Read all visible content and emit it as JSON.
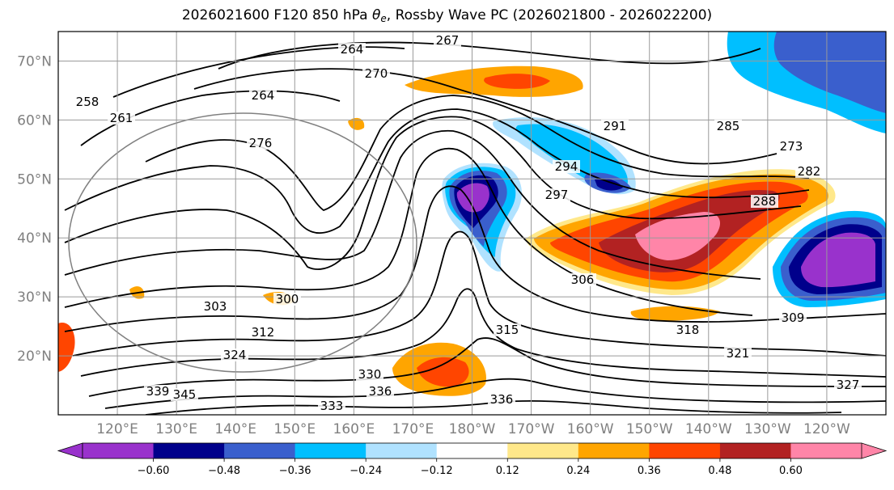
{
  "title": {
    "prefix": "2026021600 F120 850 hPa ",
    "var_symbol": "θ",
    "var_sub": "e",
    "suffix": ", Rossby Wave PC (2026021800 - 2026022200)"
  },
  "map": {
    "type": "heatmap",
    "projection": "cylindrical (lat-lon)",
    "lon_range": [
      110,
      250
    ],
    "lat_range": [
      10,
      75
    ],
    "lat_ticks": [
      "70°N",
      "60°N",
      "50°N",
      "40°N",
      "30°N",
      "20°N"
    ],
    "lon_ticks": [
      "120°E",
      "130°E",
      "140°E",
      "150°E",
      "160°E",
      "170°E",
      "180°W",
      "170°W",
      "160°W",
      "150°W",
      "140°W",
      "130°W",
      "120°W"
    ],
    "grid": true,
    "contour_labels": [
      "258",
      "261",
      "264",
      "264",
      "267",
      "270",
      "276",
      "282",
      "288",
      "294",
      "297",
      "300",
      "303",
      "306",
      "309",
      "312",
      "315",
      "318",
      "321",
      "324",
      "327",
      "330",
      "333",
      "336",
      "336",
      "339",
      "345",
      "273",
      "285",
      "291"
    ],
    "features": [
      {
        "label": "positive",
        "lon_range": [
          175,
          200
        ],
        "lat_range": [
          62,
          70
        ],
        "value_range": [
          0.24,
          0.48
        ]
      },
      {
        "label": "positive",
        "lon_range": [
          195,
          238
        ],
        "lat_range": [
          30,
          52
        ],
        "value_range": [
          0.24,
          0.7
        ]
      },
      {
        "label": "positive",
        "lon_range": [
          166,
          183
        ],
        "lat_range": [
          12,
          23
        ],
        "value_range": [
          0.24,
          0.48
        ]
      },
      {
        "label": "negative",
        "lon_range": [
          172,
          187
        ],
        "lat_range": [
          33,
          50
        ],
        "value_range": [
          -0.7,
          -0.12
        ]
      },
      {
        "label": "negative",
        "lon_range": [
          185,
          218
        ],
        "lat_range": [
          45,
          60
        ],
        "value_range": [
          -0.48,
          -0.12
        ]
      },
      {
        "label": "negative",
        "lon_range": [
          232,
          250
        ],
        "lat_range": [
          30,
          46
        ],
        "value_range": [
          -0.7,
          -0.12
        ]
      },
      {
        "label": "negative",
        "lon_range": [
          218,
          250
        ],
        "lat_range": [
          60,
          75
        ],
        "value_range": [
          -0.48,
          -0.12
        ]
      }
    ]
  },
  "colorbar": {
    "ticks": [
      "−0.60",
      "−0.48",
      "−0.36",
      "−0.24",
      "−0.12",
      "0.12",
      "0.24",
      "0.36",
      "0.48",
      "0.60"
    ],
    "colors": [
      "#9932cc",
      "#00008b",
      "#3a5fcd",
      "#00bfff",
      "#b0e2ff",
      "#ffffff",
      "#ffe88a",
      "#ffa500",
      "#ff4500",
      "#b22222",
      "#ff85a8",
      "#ff85a8"
    ]
  }
}
